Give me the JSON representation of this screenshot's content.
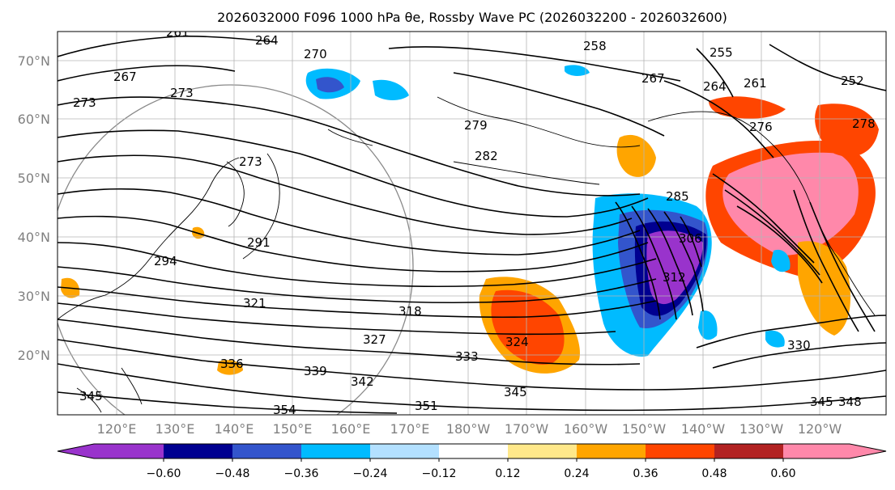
{
  "title": "2026032000 F096 1000 hPa θe, Rossby Wave PC (2026032200 - 2026032600)",
  "colors": {
    "neg_0": "#9933cc",
    "neg_1": "#000090",
    "neg_2": "#3355cc",
    "neg_3": "#00bbff",
    "neg_4": "#b3e0ff",
    "neutral": "#ffffff",
    "pos_0": "#ffe88a",
    "pos_1": "#ffa500",
    "pos_2": "#ff4500",
    "pos_3": "#b22222",
    "pos_4": "#ff88aa"
  },
  "lat_labels": [
    "70°N",
    "60°N",
    "50°N",
    "40°N",
    "30°N",
    "20°N"
  ],
  "lon_labels": [
    "120°E",
    "130°E",
    "140°E",
    "150°E",
    "160°E",
    "170°E",
    "180°W",
    "170°W",
    "160°W",
    "150°W",
    "140°W",
    "130°W",
    "120°W"
  ],
  "contour_labels": [
    "261",
    "264",
    "270",
    "258",
    "255",
    "252",
    "267",
    "267",
    "273",
    "273",
    "279",
    "282",
    "276",
    "261",
    "264",
    "278",
    "273",
    "291",
    "294",
    "285",
    "306",
    "312",
    "321",
    "318",
    "324",
    "327",
    "333",
    "336",
    "339",
    "342",
    "345",
    "345",
    "351",
    "354",
    "348",
    "345",
    "330"
  ],
  "colorbar": {
    "ticks": [
      "−0.60",
      "−0.48",
      "−0.36",
      "−0.24",
      "−0.12",
      "0.12",
      "0.24",
      "0.36",
      "0.48",
      "0.60"
    ],
    "colors": [
      "#9933cc",
      "#000090",
      "#3355cc",
      "#00bbff",
      "#b3e0ff",
      "#ffffff",
      "#ffe88a",
      "#ffa500",
      "#ff4500",
      "#b22222",
      "#ff88aa"
    ]
  }
}
